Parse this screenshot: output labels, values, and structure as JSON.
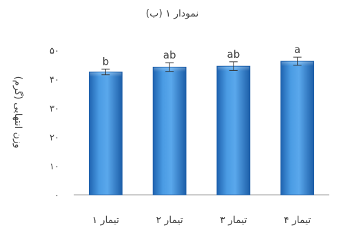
{
  "chart_data": {
    "type": "bar",
    "title": "نمودار ۱ (ب)",
    "xlabel": "",
    "ylabel": "وزن انتهایی (گرم)",
    "categories": [
      "تیمار ۱",
      "تیمار ۲",
      "تیمار ۳",
      "تیمار ۴"
    ],
    "values": [
      42.5,
      44.2,
      44.5,
      46.2
    ],
    "errors": [
      1.0,
      1.5,
      1.5,
      1.4
    ],
    "significance_labels": [
      "b",
      "ab",
      "ab",
      "a"
    ],
    "ylim": [
      0,
      50
    ],
    "y_ticks": [
      0,
      10,
      20,
      30,
      40,
      50
    ],
    "y_tick_labels": [
      "۰",
      "۱۰",
      "۲۰",
      "۳۰",
      "۴۰",
      "۵۰"
    ],
    "grid": false,
    "legend": "none",
    "bar_color": "#3d8fd9",
    "bar_edge_color": "#1f5fa8",
    "error_bar_color": "#333333",
    "axis_color": "#999999",
    "text_color": "#404040"
  }
}
